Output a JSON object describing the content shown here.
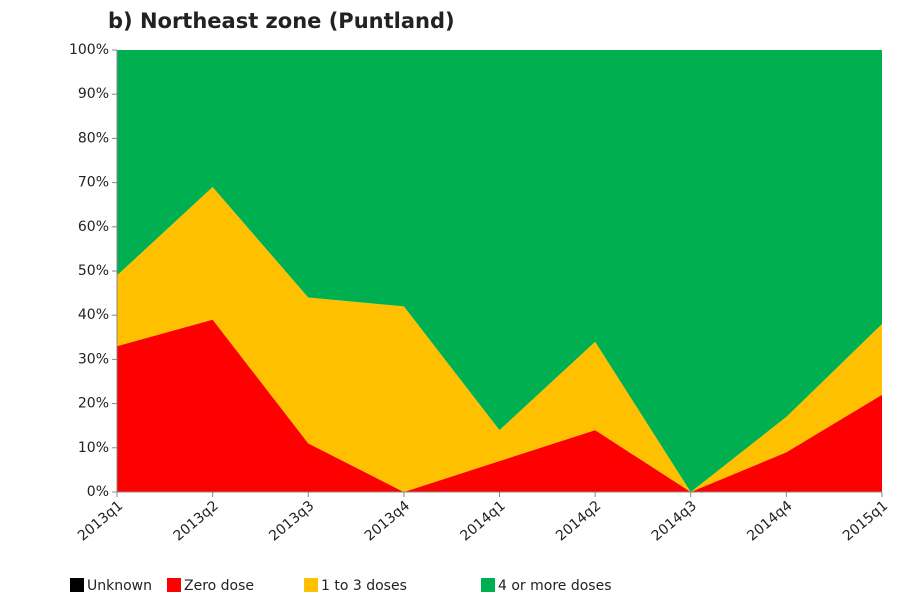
{
  "chart_data": {
    "type": "stacked_area",
    "title": "b) Northeast zone (Puntland)",
    "categories": [
      "2013q1",
      "2013q2",
      "2013q3",
      "2013q4",
      "2014q1",
      "2014q2",
      "2014q3",
      "2014q4",
      "2015q1"
    ],
    "series": [
      {
        "name": "Unknown",
        "color": "#000000",
        "values": [
          0,
          0,
          0,
          0,
          0,
          0,
          0,
          0,
          0
        ]
      },
      {
        "name": "Zero dose",
        "color": "#ff0000",
        "values": [
          33,
          39,
          11,
          0,
          7,
          14,
          0,
          9,
          22
        ]
      },
      {
        "name": "1 to 3 doses",
        "color": "#ffc000",
        "values": [
          16,
          30,
          33,
          42,
          7,
          20,
          0,
          8,
          16
        ]
      },
      {
        "name": "4 or more doses",
        "color": "#00b050",
        "values": [
          51,
          31,
          56,
          58,
          86,
          66,
          100,
          83,
          62
        ]
      }
    ],
    "ylim": [
      0,
      100
    ],
    "yticks": [
      {
        "value": 0,
        "label": "0%"
      },
      {
        "value": 10,
        "label": "10%"
      },
      {
        "value": 20,
        "label": "20%"
      },
      {
        "value": 30,
        "label": "30%"
      },
      {
        "value": 40,
        "label": "40%"
      },
      {
        "value": 50,
        "label": "50%"
      },
      {
        "value": 60,
        "label": "60%"
      },
      {
        "value": 70,
        "label": "70%"
      },
      {
        "value": 80,
        "label": "80%"
      },
      {
        "value": 90,
        "label": "90%"
      },
      {
        "value": 100,
        "label": "100%"
      }
    ],
    "legend": "bottom"
  }
}
